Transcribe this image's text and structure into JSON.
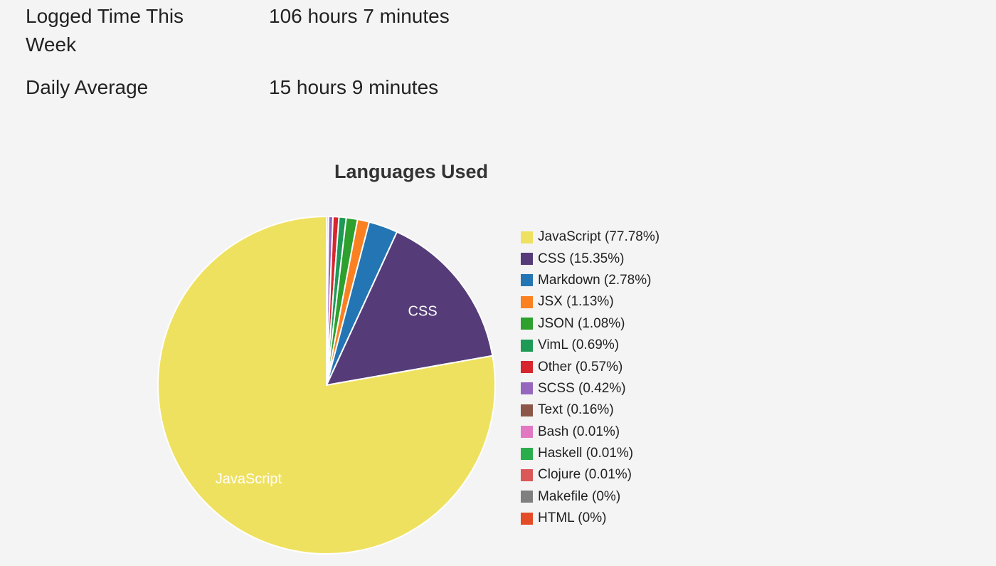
{
  "stats": {
    "logged_label": "Logged Time This Week",
    "logged_value": "106 hours 7 minutes",
    "average_label": "Daily Average",
    "average_value": "15 hours 9 minutes"
  },
  "chart_data": {
    "type": "pie",
    "title": "Languages Used",
    "legend_position": "right",
    "slices": [
      {
        "name": "JavaScript",
        "value": 77.78,
        "label": "JavaScript (77.78%)",
        "color": "#efe160",
        "slice_label": "JavaScript"
      },
      {
        "name": "CSS",
        "value": 15.35,
        "label": "CSS (15.35%)",
        "color": "#553c79",
        "slice_label": "CSS"
      },
      {
        "name": "Markdown",
        "value": 2.78,
        "label": "Markdown (2.78%)",
        "color": "#2475b4"
      },
      {
        "name": "JSX",
        "value": 1.13,
        "label": "JSX (1.13%)",
        "color": "#fb8021"
      },
      {
        "name": "JSON",
        "value": 1.08,
        "label": "JSON (1.08%)",
        "color": "#2da02d"
      },
      {
        "name": "VimL",
        "value": 0.69,
        "label": "VimL (0.69%)",
        "color": "#1d9a56"
      },
      {
        "name": "Other",
        "value": 0.57,
        "label": "Other (0.57%)",
        "color": "#d7262e"
      },
      {
        "name": "SCSS",
        "value": 0.42,
        "label": "SCSS (0.42%)",
        "color": "#9566bd"
      },
      {
        "name": "Text",
        "value": 0.16,
        "label": "Text (0.16%)",
        "color": "#8c5648"
      },
      {
        "name": "Bash",
        "value": 0.01,
        "label": "Bash (0.01%)",
        "color": "#e378c2"
      },
      {
        "name": "Haskell",
        "value": 0.01,
        "label": "Haskell (0.01%)",
        "color": "#2aad4d"
      },
      {
        "name": "Clojure",
        "value": 0.01,
        "label": "Clojure (0.01%)",
        "color": "#db5859"
      },
      {
        "name": "Makefile",
        "value": 0,
        "label": "Makefile (0%)",
        "color": "#7f7f7f"
      },
      {
        "name": "HTML",
        "value": 0,
        "label": "HTML (0%)",
        "color": "#e34c26"
      }
    ]
  }
}
